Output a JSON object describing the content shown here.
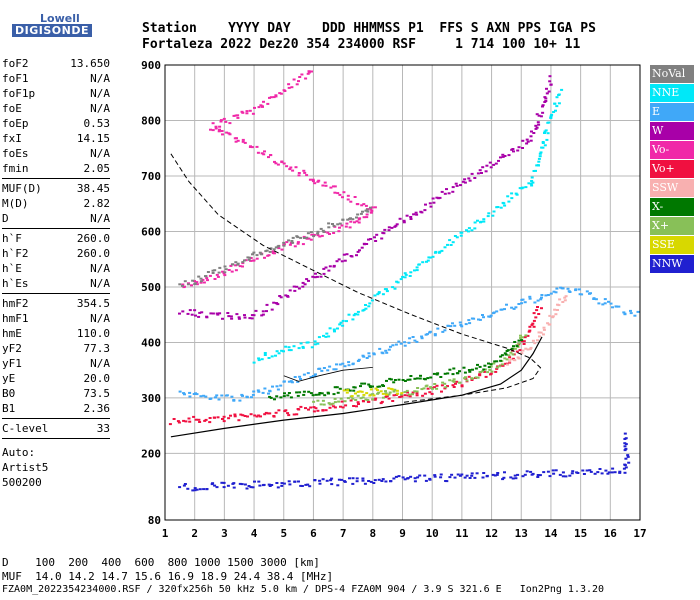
{
  "logo": {
    "line1": "Lowell",
    "line2": "DIGISONDE"
  },
  "header": {
    "labels": "Station    YYYY DAY    DDD HHMMSS P1  FFS S AXN PPS IGA PS",
    "values": "Fortaleza 2022 Dez20 354 234000 RSF     1 714 100 10+ 11"
  },
  "params": {
    "group1": [
      {
        "name": "foF2",
        "value": "13.650"
      },
      {
        "name": "foF1",
        "value": "N/A"
      },
      {
        "name": "foF1p",
        "value": "N/A"
      },
      {
        "name": "foE",
        "value": "N/A"
      },
      {
        "name": "foEp",
        "value": "0.53"
      },
      {
        "name": "fxI",
        "value": "14.15"
      },
      {
        "name": "foEs",
        "value": "N/A"
      },
      {
        "name": "fmin",
        "value": "2.05"
      }
    ],
    "group2": [
      {
        "name": "MUF(D)",
        "value": "38.45"
      },
      {
        "name": "M(D)",
        "value": "2.82"
      },
      {
        "name": "D",
        "value": "N/A"
      }
    ],
    "group3": [
      {
        "name": "h`F",
        "value": "260.0"
      },
      {
        "name": "h`F2",
        "value": "260.0"
      },
      {
        "name": "h`E",
        "value": "N/A"
      },
      {
        "name": "h`Es",
        "value": "N/A"
      }
    ],
    "group4": [
      {
        "name": "hmF2",
        "value": "354.5"
      },
      {
        "name": "hmF1",
        "value": "N/A"
      },
      {
        "name": "hmE",
        "value": "110.0"
      },
      {
        "name": "yF2",
        "value": "77.3"
      },
      {
        "name": "yF1",
        "value": "N/A"
      },
      {
        "name": "yE",
        "value": "20.0"
      },
      {
        "name": "B0",
        "value": "73.5"
      },
      {
        "name": "B1",
        "value": "2.36"
      }
    ],
    "group5": [
      {
        "name": "C-level",
        "value": "33"
      }
    ],
    "notes": [
      "Auto:",
      "Artist5",
      "500200"
    ]
  },
  "legend": [
    {
      "label": "NoVal",
      "color": "#808080"
    },
    {
      "label": "NNE",
      "color": "#00e8f8"
    },
    {
      "label": "E",
      "color": "#40a8f8"
    },
    {
      "label": "W",
      "color": "#a800a8"
    },
    {
      "label": "Vo-",
      "color": "#f028a8"
    },
    {
      "label": "Vo+",
      "color": "#f01040"
    },
    {
      "label": "SSW",
      "color": "#f8b0b0"
    },
    {
      "label": "X-",
      "color": "#007800"
    },
    {
      "label": "X+",
      "color": "#88c058"
    },
    {
      "label": "SSE",
      "color": "#d8d800"
    },
    {
      "label": "NNW",
      "color": "#2020d0"
    }
  ],
  "footer": {
    "line1": "D    100  200  400  600  800 1000 1500 3000 [km]",
    "line2": "MUF  14.0 14.2 14.7 15.6 16.9 18.9 24.4 38.4 [MHz]",
    "line3": "FZA0M_2022354234000.RSF / 320fx256h 50 kHz 5.0 km / DPS-4 FZA0M 904 / 3.9 S 321.6 E   Ion2Png 1.3.20"
  },
  "chart_data": {
    "type": "scatter",
    "xlim": [
      1,
      17
    ],
    "ylim": [
      80,
      900
    ],
    "x_ticks": [
      "1",
      "2",
      "3",
      "4",
      "5",
      "6",
      "7",
      "8",
      "9",
      "10",
      "11",
      "12",
      "13",
      "14",
      "15",
      "16",
      "17"
    ],
    "y_ticks": [
      "80",
      "200",
      "300",
      "400",
      "500",
      "600",
      "700",
      "800",
      "900"
    ],
    "grid": true,
    "series": [
      {
        "name": "Vo+",
        "color": "#f01040",
        "trace": [
          [
            1.2,
            260
          ],
          [
            3,
            265
          ],
          [
            5,
            275
          ],
          [
            7,
            290
          ],
          [
            9,
            305
          ],
          [
            10,
            315
          ],
          [
            11,
            330
          ],
          [
            11.8,
            345
          ],
          [
            12.4,
            365
          ],
          [
            12.9,
            395
          ],
          [
            13.3,
            430
          ],
          [
            13.6,
            470
          ]
        ]
      },
      {
        "name": "X+",
        "color": "#88c058",
        "trace": [
          [
            6,
            290
          ],
          [
            8,
            305
          ],
          [
            10,
            320
          ],
          [
            11,
            335
          ],
          [
            12,
            355
          ],
          [
            12.6,
            380
          ],
          [
            13.1,
            420
          ]
        ]
      },
      {
        "name": "SSW",
        "color": "#f8b0b0",
        "trace": [
          [
            12.5,
            360
          ],
          [
            13,
            380
          ],
          [
            13.5,
            410
          ],
          [
            13.9,
            440
          ],
          [
            14.2,
            470
          ],
          [
            14.5,
            490
          ]
        ]
      },
      {
        "name": "E",
        "color": "#40a8f8",
        "trace": [
          [
            1.5,
            310
          ],
          [
            2.5,
            305
          ],
          [
            3.5,
            300
          ],
          [
            14.5,
            500
          ],
          [
            15.5,
            480
          ],
          [
            16.5,
            455
          ],
          [
            16.9,
            450
          ]
        ]
      },
      {
        "name": "NNE",
        "color": "#00e8f8",
        "trace": [
          [
            4,
            370
          ],
          [
            5,
            390
          ],
          [
            6,
            400
          ],
          [
            13.3,
            690
          ],
          [
            13.8,
            780
          ],
          [
            14.3,
            860
          ]
        ]
      },
      {
        "name": "W",
        "color": "#a800a8",
        "trace": [
          [
            1.5,
            455
          ],
          [
            3,
            450
          ],
          [
            4,
            450
          ],
          [
            13.3,
            770
          ],
          [
            13.8,
            850
          ],
          [
            14,
            880
          ]
        ]
      },
      {
        "name": "Vo-",
        "color": "#f028a8",
        "trace": [
          [
            1.5,
            500
          ],
          [
            3,
            530
          ],
          [
            5,
            575
          ],
          [
            7,
            610
          ],
          [
            8,
            640
          ],
          [
            2.5,
            790
          ],
          [
            4,
            820
          ],
          [
            5,
            860
          ],
          [
            6,
            895
          ]
        ]
      },
      {
        "name": "NoVal",
        "color": "#808080",
        "trace": [
          [
            1.5,
            505
          ],
          [
            3,
            535
          ],
          [
            5,
            580
          ],
          [
            7,
            620
          ],
          [
            8,
            645
          ]
        ]
      },
      {
        "name": "X-",
        "color": "#007800",
        "trace": [
          [
            4.5,
            305
          ],
          [
            6,
            310
          ],
          [
            12,
            360
          ],
          [
            13,
            410
          ]
        ]
      },
      {
        "name": "SSE",
        "color": "#d8d800",
        "trace": [
          [
            7,
            310
          ],
          [
            9,
            315
          ]
        ]
      },
      {
        "name": "NNW",
        "color": "#2020d0",
        "trace": [
          [
            16.5,
            235
          ],
          [
            16.5,
            200
          ],
          [
            16.5,
            170
          ],
          [
            1.4,
            140
          ]
        ]
      }
    ],
    "profile_dashed": [
      [
        1.2,
        740
      ],
      [
        1.8,
        690
      ],
      [
        2.8,
        630
      ],
      [
        4.3,
        575
      ],
      [
        5.8,
        535
      ],
      [
        7.5,
        490
      ],
      [
        9.3,
        450
      ],
      [
        11,
        415
      ],
      [
        12.5,
        390
      ],
      [
        13.3,
        372
      ],
      [
        13.65,
        354.5
      ],
      [
        13.4,
        335
      ],
      [
        12.5,
        318
      ],
      [
        11,
        305
      ],
      [
        9,
        292
      ]
    ],
    "trace_solid": [
      [
        1.2,
        230
      ],
      [
        3,
        245
      ],
      [
        5,
        260
      ],
      [
        7,
        272
      ],
      [
        9,
        288
      ],
      [
        11,
        305
      ],
      [
        12.3,
        325
      ],
      [
        13,
        350
      ],
      [
        13.4,
        380
      ],
      [
        13.7,
        410
      ]
    ],
    "thin_curve": [
      [
        5,
        340
      ],
      [
        5.5,
        330
      ],
      [
        6.2,
        340
      ],
      [
        7,
        350
      ],
      [
        8,
        355
      ]
    ]
  }
}
